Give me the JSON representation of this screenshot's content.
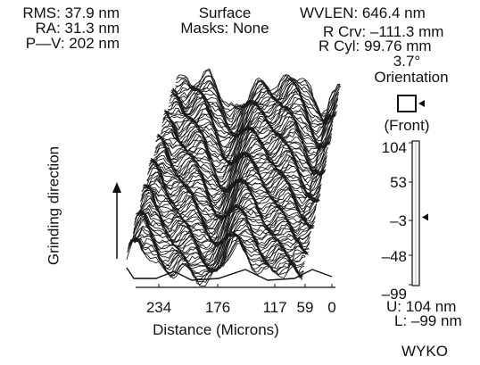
{
  "stats": {
    "rms": "RMS: 37.9 nm",
    "ra": "RA: 31.3 nm",
    "pv": "P—V: 202 nm"
  },
  "surface": {
    "title": "Surface",
    "masks": "Masks: None"
  },
  "wavelength": {
    "wvlen": "WVLEN: 646.4 nm",
    "rcrv": "R Crv: –111.3 mm",
    "rcyl": "R Cyl: 99.76 mm"
  },
  "orientation": {
    "angle": "3.7°",
    "label": "Orientation",
    "side": "(Front)"
  },
  "plot": {
    "y_label": "Grinding direction",
    "x_label": "Distance (Microns)",
    "x_ticks": [
      "234",
      "176",
      "117",
      "59",
      "0"
    ]
  },
  "scale": {
    "ticks": [
      "104",
      "53",
      "–3",
      "–48",
      "–99"
    ],
    "upper": "U: 104 nm",
    "lower": "L: –99 nm",
    "marker_value": -3,
    "min": -99,
    "max": 104
  },
  "brand": "WYKO"
}
